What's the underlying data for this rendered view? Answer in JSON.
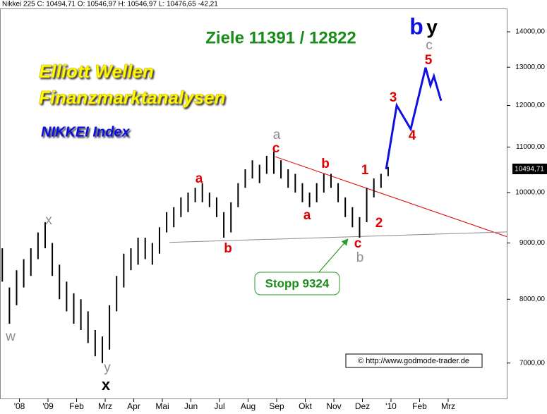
{
  "chart_data": {
    "type": "ohlc",
    "header": "Nikkei 225 C: 10494,71 O: 10546,97 H: 10546,97 L: 10476,65 -42,21",
    "title": "Ziele 11391 / 12822",
    "brand": [
      "Elliott Wellen",
      "Finanzmarktanalysen"
    ],
    "subtitle": "NIKKEI Index",
    "stop": "Stopp 9324",
    "source": "© http://www.godmode-trader.de",
    "last_price": "10494,71",
    "annotations": [
      "w",
      "x",
      "y",
      "x",
      "a",
      "b",
      "a",
      "c",
      "b",
      "a",
      "1",
      "2",
      "c",
      "b",
      "3",
      "4",
      "5",
      "c",
      "b",
      "y"
    ],
    "log_y": true,
    "color": "#000000",
    "ylim": [
      6500,
      14700
    ],
    "yticks": [
      {
        "value": 7000,
        "label": "7000,00"
      },
      {
        "value": 8000,
        "label": "8000,00"
      },
      {
        "value": 9000,
        "label": "9000,00"
      },
      {
        "value": 10000,
        "label": "10000,00"
      },
      {
        "value": 11000,
        "label": "11000,00"
      },
      {
        "value": 12000,
        "label": "12000,00"
      },
      {
        "value": 13000,
        "label": "13000,00"
      },
      {
        "value": 14000,
        "label": "14000,00"
      }
    ],
    "xlim": [
      -0.68,
      17.05
    ],
    "xticks": [
      {
        "value": 0,
        "label": "'08"
      },
      {
        "value": 1,
        "label": "'09"
      },
      {
        "value": 2,
        "label": "Feb"
      },
      {
        "value": 3,
        "label": "Mrz"
      },
      {
        "value": 4,
        "label": "Apr"
      },
      {
        "value": 5,
        "label": "Mai"
      },
      {
        "value": 6,
        "label": "Jun"
      },
      {
        "value": 7,
        "label": "Jul"
      },
      {
        "value": 8,
        "label": "Aug"
      },
      {
        "value": 9,
        "label": "Sep"
      },
      {
        "value": 10,
        "label": "Okt"
      },
      {
        "value": 11,
        "label": "Nov"
      },
      {
        "value": 12,
        "label": "Dez"
      },
      {
        "value": 13,
        "label": "'10"
      },
      {
        "value": 14,
        "label": "Feb"
      },
      {
        "value": 15,
        "label": "Mrz"
      }
    ],
    "bars": {
      "x": [
        -0.6,
        -0.35,
        -0.1,
        0.15,
        0.4,
        0.65,
        0.9,
        1.15,
        1.4,
        1.65,
        1.9,
        2.15,
        2.4,
        2.65,
        2.9,
        3.15,
        3.4,
        3.65,
        3.9,
        4.15,
        4.4,
        4.65,
        4.9,
        5.15,
        5.4,
        5.65,
        5.9,
        6.15,
        6.4,
        6.65,
        6.9,
        7.15,
        7.4,
        7.65,
        7.9,
        8.15,
        8.4,
        8.65,
        8.9,
        9.15,
        9.4,
        9.65,
        9.9,
        10.15,
        10.4,
        10.65,
        10.9,
        11.15,
        11.4,
        11.65,
        11.9,
        12.15,
        12.4,
        12.65,
        12.9
      ],
      "high": [
        8900,
        8200,
        8500,
        8700,
        8900,
        9200,
        9400,
        9000,
        8600,
        8300,
        8100,
        8000,
        7800,
        7500,
        7400,
        7900,
        8400,
        8800,
        8900,
        9100,
        9100,
        9000,
        9300,
        9600,
        9700,
        9900,
        10000,
        10100,
        10200,
        10000,
        9900,
        9600,
        9800,
        10200,
        10500,
        10700,
        10600,
        10800,
        10900,
        10700,
        10500,
        10400,
        10200,
        10000,
        10200,
        10400,
        10400,
        10200,
        9900,
        9700,
        9500,
        10100,
        10300,
        10400,
        10550
      ],
      "low": [
        8300,
        7600,
        7900,
        8200,
        8400,
        8700,
        8900,
        8400,
        8000,
        7800,
        7600,
        7500,
        7300,
        7100,
        7000,
        7200,
        7800,
        8200,
        8500,
        8600,
        8700,
        8600,
        8800,
        9200,
        9300,
        9500,
        9600,
        9800,
        9800,
        9700,
        9500,
        9100,
        9200,
        9700,
        10100,
        10300,
        10200,
        10400,
        10400,
        10300,
        10100,
        10000,
        9800,
        9700,
        9800,
        10000,
        10100,
        9800,
        9500,
        9300,
        9100,
        9400,
        9900,
        10100,
        10350
      ]
    },
    "forecast": {
      "color": "#1010e0",
      "x": [
        12.83,
        13.2,
        13.69,
        14.21,
        14.38,
        14.5,
        14.75
      ],
      "values": [
        10500,
        12000,
        11420,
        12990,
        12510,
        12760,
        12120
      ]
    },
    "trendlines": [
      {
        "color": "#e00000",
        "x": [
          8.95,
          17.05
        ],
        "values": [
          10780,
          9120
        ]
      },
      {
        "color": "#8c8c8c",
        "x": [
          5.25,
          17.05
        ],
        "values": [
          9010,
          9210
        ]
      }
    ]
  }
}
